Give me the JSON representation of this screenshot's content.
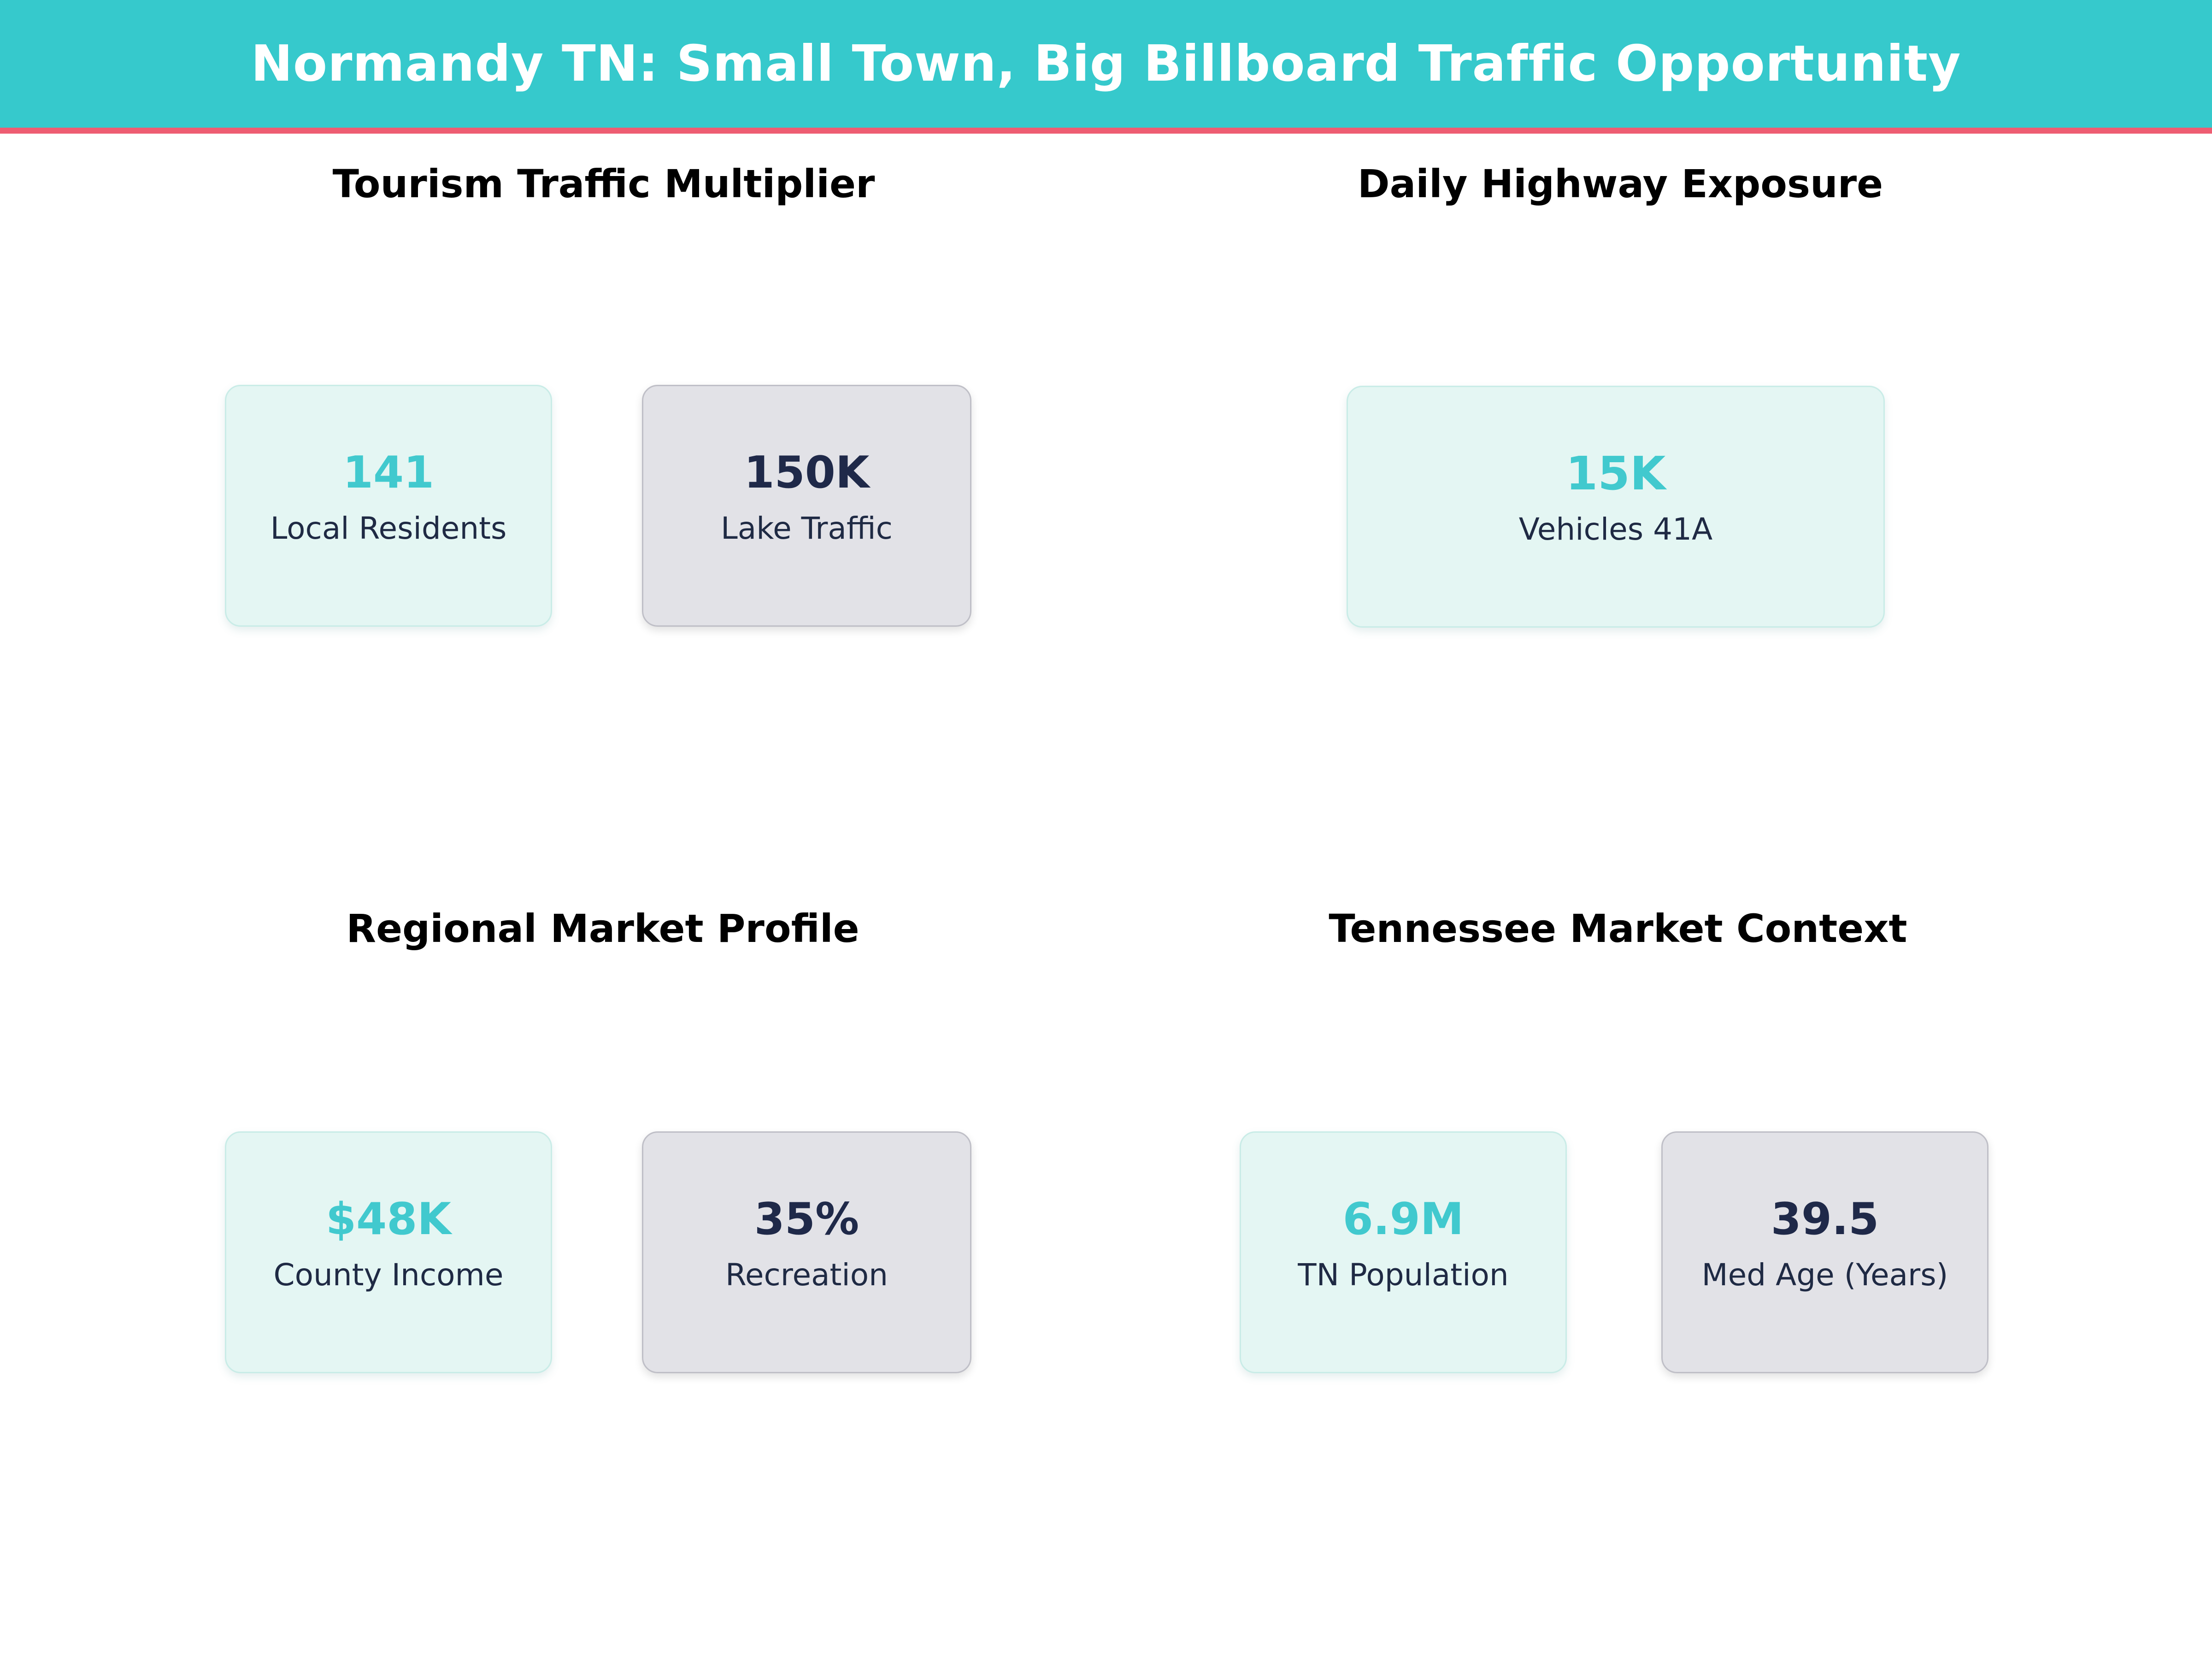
{
  "header": {
    "title": "Normandy TN: Small Town, Big Billboard Traffic Opportunity"
  },
  "colors": {
    "header_teal": "#36C9CC",
    "accent_pink": "#EE5D72",
    "value_teal": "#41C9CE",
    "value_navy": "#1F2949",
    "label_navy": "#1F2A44",
    "card_mint_bg": "#E4F6F3",
    "card_mint_border": "#C9ECE7",
    "card_gray_bg": "#E2E2E7",
    "card_gray_border": "#BFBFC7"
  },
  "sections": [
    {
      "title": "Tourism Traffic Multiplier",
      "cards": [
        {
          "value": "141",
          "label": "Local Residents"
        },
        {
          "value": "150K",
          "label": "Lake Traffic"
        }
      ]
    },
    {
      "title": "Daily Highway Exposure",
      "cards": [
        {
          "value": "15K",
          "label": "Vehicles 41A"
        }
      ]
    },
    {
      "title": "Regional Market Profile",
      "cards": [
        {
          "value": "$48K",
          "label": "County Income"
        },
        {
          "value": "35%",
          "label": "Recreation"
        }
      ]
    },
    {
      "title": "Tennessee Market Context",
      "cards": [
        {
          "value": "6.9M",
          "label": "TN Population"
        },
        {
          "value": "39.5",
          "label": "Med Age (Years)"
        }
      ]
    }
  ],
  "chart_data": {
    "type": "table",
    "title": "Normandy TN: Small Town, Big Billboard Traffic Opportunity",
    "groups": [
      {
        "title": "Tourism Traffic Multiplier",
        "stats": [
          {
            "label": "Local Residents",
            "value": 141,
            "display": "141"
          },
          {
            "label": "Lake Traffic",
            "value": 150000,
            "display": "150K"
          }
        ]
      },
      {
        "title": "Daily Highway Exposure",
        "stats": [
          {
            "label": "Vehicles 41A",
            "value": 15000,
            "display": "15K"
          }
        ]
      },
      {
        "title": "Regional Market Profile",
        "stats": [
          {
            "label": "County Income",
            "value": 48000,
            "display": "$48K"
          },
          {
            "label": "Recreation",
            "value": 35,
            "display": "35%"
          }
        ]
      },
      {
        "title": "Tennessee Market Context",
        "stats": [
          {
            "label": "TN Population",
            "value": 6900000,
            "display": "6.9M"
          },
          {
            "label": "Med Age (Years)",
            "value": 39.5,
            "display": "39.5"
          }
        ]
      }
    ]
  }
}
